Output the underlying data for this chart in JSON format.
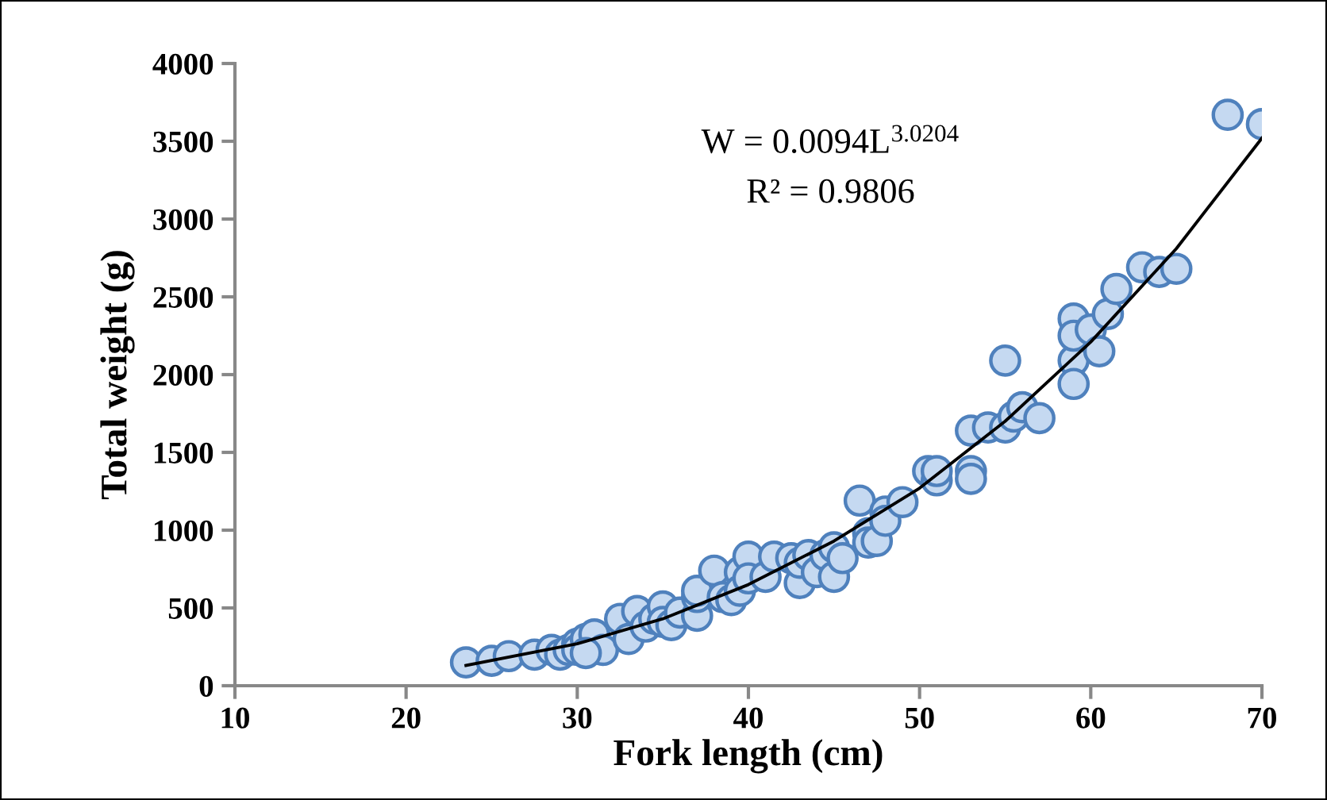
{
  "chart_data": {
    "type": "scatter",
    "xlabel": "Fork length (cm)",
    "ylabel": "Total weight (g)",
    "xlim": [
      10,
      70
    ],
    "xticks": [
      10,
      20,
      30,
      40,
      50,
      60,
      70
    ],
    "ylim": [
      0,
      4000
    ],
    "yticks": [
      0,
      500,
      1000,
      1500,
      2000,
      2500,
      3000,
      3500,
      4000
    ],
    "grid": false,
    "legend": false,
    "marker": "circle",
    "annotations": [
      "W = 0.0094L$^{3.0204}$",
      "R² = 0.9806"
    ],
    "series": [
      {
        "color": "#c5d9f1",
        "x": [
          23.5,
          25,
          26,
          27.5,
          28.5,
          29,
          29.5,
          30,
          30,
          30.5,
          31,
          31.5,
          30.5,
          32.5,
          33,
          33.5,
          34,
          34.5,
          35,
          35,
          35.5,
          36,
          37,
          37,
          37,
          38,
          38.5,
          39,
          39.5,
          39.5,
          40,
          40,
          41,
          41.5,
          42.5,
          43,
          43,
          43.5,
          44,
          44.5,
          45,
          45,
          45.5,
          46.5,
          47,
          47,
          47.5,
          48,
          48,
          49,
          50.5,
          51,
          51,
          53,
          53,
          53,
          54,
          55,
          55,
          55.5,
          56,
          57,
          59,
          59,
          59,
          59,
          60,
          60.5,
          61,
          61.5,
          63,
          64,
          65,
          68,
          70
        ],
        "values": [
          150,
          160,
          190,
          200,
          230,
          200,
          230,
          270,
          230,
          300,
          330,
          230,
          210,
          430,
          300,
          480,
          380,
          430,
          510,
          410,
          390,
          470,
          450,
          570,
          610,
          740,
          570,
          550,
          730,
          610,
          830,
          690,
          700,
          830,
          820,
          660,
          790,
          840,
          730,
          840,
          890,
          700,
          820,
          1190,
          980,
          920,
          930,
          1120,
          1060,
          1180,
          1380,
          1320,
          1380,
          1640,
          1380,
          1330,
          1660,
          1660,
          2090,
          1730,
          1790,
          1720,
          2090,
          1940,
          2360,
          2250,
          2290,
          2150,
          2390,
          2550,
          2690,
          2660,
          2680,
          3670,
          3610
        ]
      },
      {
        "type": "line",
        "color": "#000000",
        "marker": "none",
        "line_style": "solid",
        "x": [
          23.5,
          30,
          35,
          40,
          45,
          50,
          55,
          60,
          65,
          70
        ],
        "values": [
          130,
          270,
          430,
          650,
          930,
          1270,
          1700,
          2210,
          2810,
          3520
        ]
      }
    ]
  }
}
